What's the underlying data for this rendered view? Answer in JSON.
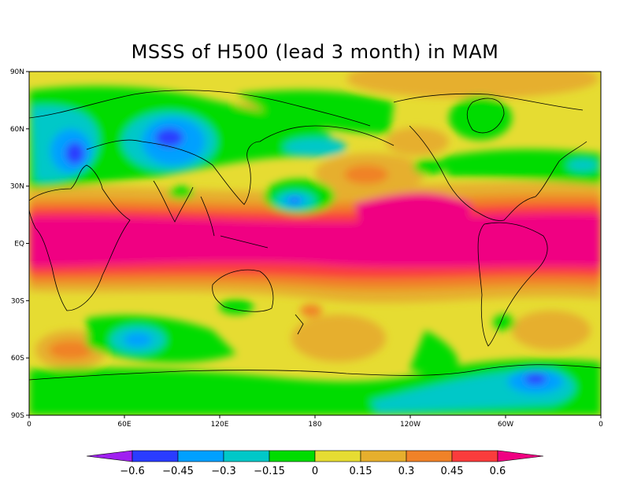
{
  "title": "MSSS of H500 (lead 3 month) in MAM",
  "map": {
    "projection": "equirectangular",
    "lon_range": [
      0,
      360
    ],
    "lat_range": [
      -90,
      90
    ],
    "lat_ticks": [
      {
        "lat": 90,
        "label": "90N"
      },
      {
        "lat": 60,
        "label": "60N"
      },
      {
        "lat": 30,
        "label": "30N"
      },
      {
        "lat": 0,
        "label": "EQ"
      },
      {
        "lat": -30,
        "label": "30S"
      },
      {
        "lat": -60,
        "label": "60S"
      },
      {
        "lat": -90,
        "label": "90S"
      }
    ],
    "lon_ticks": [
      {
        "lon": 0,
        "label": "0"
      },
      {
        "lon": 60,
        "label": "60E"
      },
      {
        "lon": 120,
        "label": "120E"
      },
      {
        "lon": 180,
        "label": "180"
      },
      {
        "lon": 240,
        "label": "120W"
      },
      {
        "lon": 300,
        "label": "60W"
      },
      {
        "lon": 360,
        "label": "0"
      }
    ]
  },
  "colorbar": {
    "boundaries": [
      -0.6,
      -0.45,
      -0.3,
      -0.15,
      0,
      0.15,
      0.3,
      0.45,
      0.6
    ],
    "labels": [
      "−0.6",
      "−0.45",
      "−0.3",
      "−0.15",
      "0",
      "0.15",
      "0.3",
      "0.45",
      "0.6"
    ],
    "colors": [
      "#a020f0",
      "#2a3cff",
      "#00a0ff",
      "#00c8c8",
      "#00dc00",
      "#e6dc32",
      "#e6af2d",
      "#f08228",
      "#fa3c3c",
      "#f00082"
    ]
  }
}
